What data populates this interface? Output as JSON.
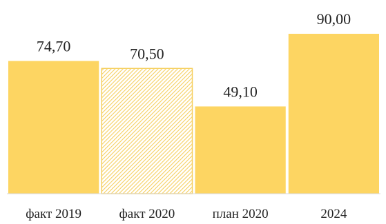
{
  "chart_data": {
    "type": "bar",
    "categories": [
      "факт 2019",
      "факт 2020",
      "план 2020",
      "2024"
    ],
    "values": [
      74.7,
      70.5,
      49.1,
      90.0
    ],
    "value_labels": [
      "74,70",
      "70,50",
      "49,10",
      "90,00"
    ],
    "bar_styles": [
      "solid",
      "hatched",
      "solid",
      "solid"
    ],
    "colors": {
      "bar": "#FDD562",
      "hatch": "#F6CF5E",
      "baseline": "#D9D9D9"
    },
    "title": "",
    "xlabel": "",
    "ylabel": "",
    "ylim": [
      0,
      100
    ],
    "grid": false,
    "legend": "none"
  }
}
